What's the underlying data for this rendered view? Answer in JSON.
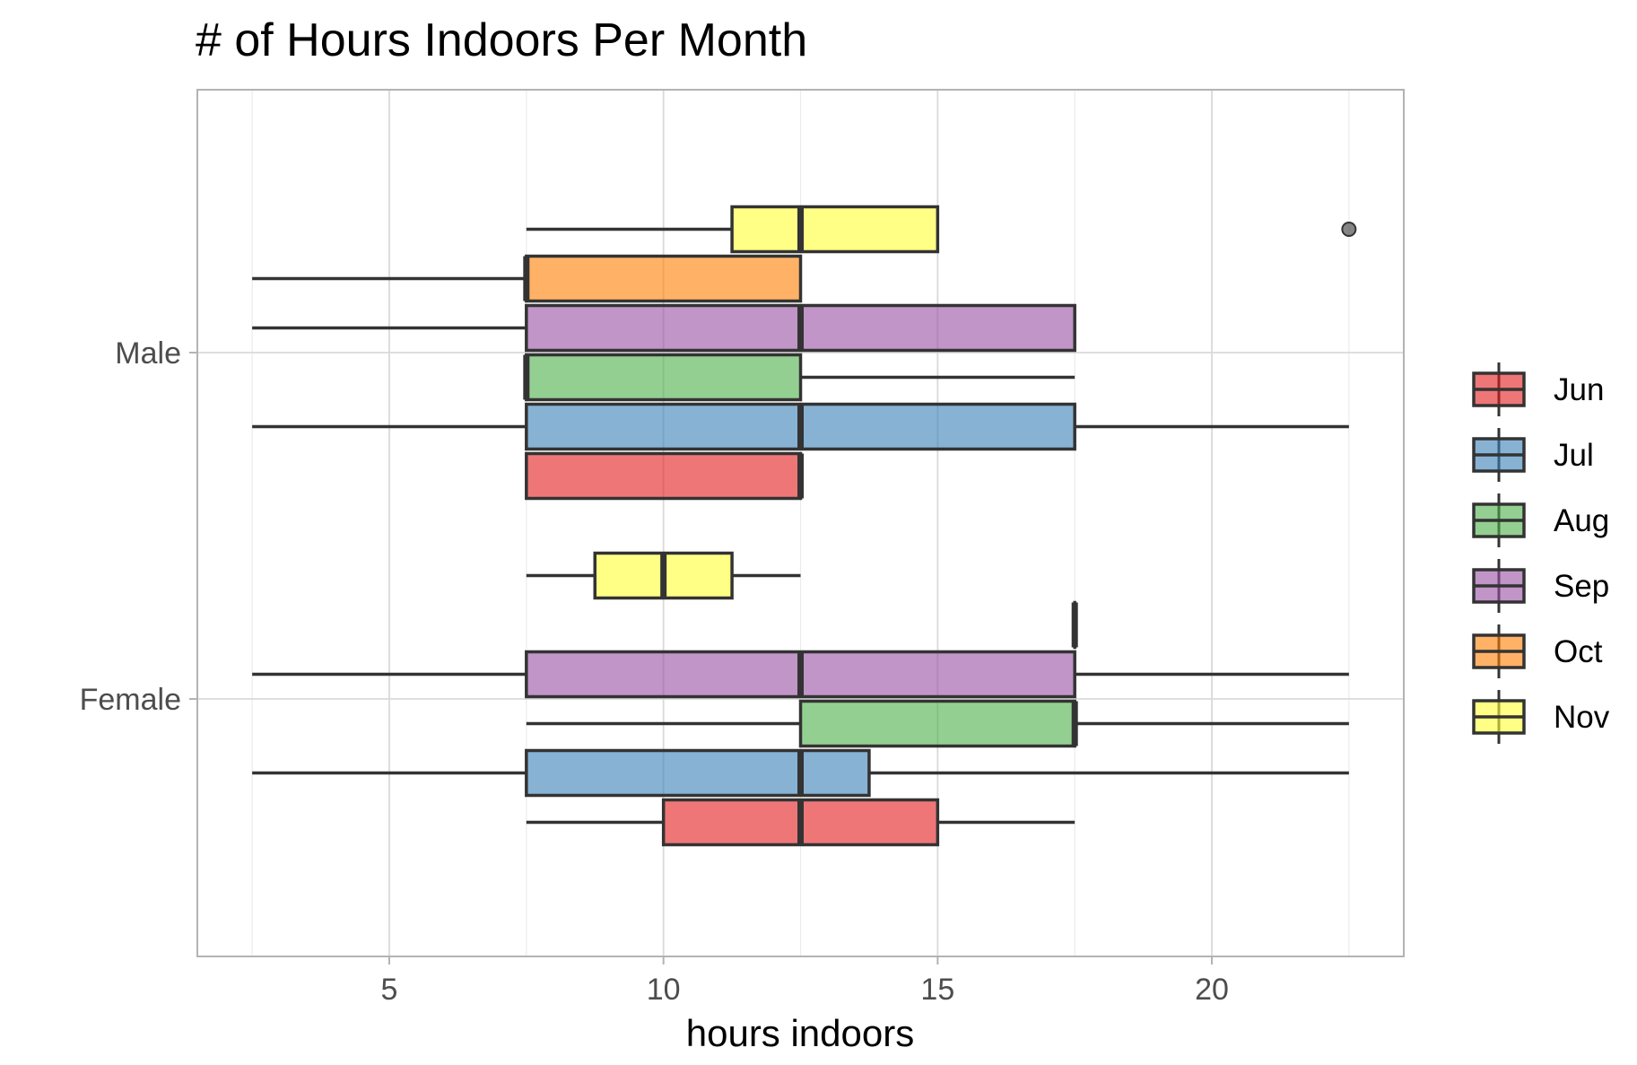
{
  "chart_data": {
    "type": "boxplot",
    "orientation": "horizontal",
    "title": "# of Hours Indoors Per Month",
    "xlabel": "hours indoors",
    "ylabel": "",
    "xlim": [
      1.5,
      23.5
    ],
    "xticks": [
      5,
      10,
      15,
      20
    ],
    "categories": [
      "Male",
      "Female"
    ],
    "grid": true,
    "legend": {
      "position": "right",
      "title": ""
    },
    "series": [
      {
        "name": "Jun",
        "color": "#E41A1C"
      },
      {
        "name": "Jul",
        "color": "#377EB8"
      },
      {
        "name": "Aug",
        "color": "#4DAF4A"
      },
      {
        "name": "Sep",
        "color": "#984EA3"
      },
      {
        "name": "Oct",
        "color": "#FF7F00"
      },
      {
        "name": "Nov",
        "color": "#FFFF33"
      }
    ],
    "boxes": [
      {
        "category": "Male",
        "series": "Jun",
        "whisker_low": 7.5,
        "q1": 7.5,
        "median": 12.5,
        "q3": 12.5,
        "whisker_high": 12.5,
        "outliers": []
      },
      {
        "category": "Male",
        "series": "Jul",
        "whisker_low": 2.5,
        "q1": 7.5,
        "median": 12.5,
        "q3": 17.5,
        "whisker_high": 22.5,
        "outliers": []
      },
      {
        "category": "Male",
        "series": "Aug",
        "whisker_low": 7.5,
        "q1": 7.5,
        "median": 7.5,
        "q3": 12.5,
        "whisker_high": 17.5,
        "outliers": []
      },
      {
        "category": "Male",
        "series": "Sep",
        "whisker_low": 2.5,
        "q1": 7.5,
        "median": 12.5,
        "q3": 17.5,
        "whisker_high": 17.5,
        "outliers": []
      },
      {
        "category": "Male",
        "series": "Oct",
        "whisker_low": 2.5,
        "q1": 7.5,
        "median": 7.5,
        "q3": 12.5,
        "whisker_high": 12.5,
        "outliers": []
      },
      {
        "category": "Male",
        "series": "Nov",
        "whisker_low": 7.5,
        "q1": 11.25,
        "median": 12.5,
        "q3": 15,
        "whisker_high": 15,
        "outliers": [
          22.5
        ]
      },
      {
        "category": "Female",
        "series": "Jun",
        "whisker_low": 7.5,
        "q1": 10,
        "median": 12.5,
        "q3": 15,
        "whisker_high": 17.5,
        "outliers": []
      },
      {
        "category": "Female",
        "series": "Jul",
        "whisker_low": 2.5,
        "q1": 7.5,
        "median": 12.5,
        "q3": 13.75,
        "whisker_high": 22.5,
        "outliers": []
      },
      {
        "category": "Female",
        "series": "Aug",
        "whisker_low": 7.5,
        "q1": 12.5,
        "median": 17.5,
        "q3": 17.5,
        "whisker_high": 22.5,
        "outliers": []
      },
      {
        "category": "Female",
        "series": "Sep",
        "whisker_low": 2.5,
        "q1": 7.5,
        "median": 12.5,
        "q3": 17.5,
        "whisker_high": 22.5,
        "outliers": []
      },
      {
        "category": "Female",
        "series": "Oct",
        "whisker_low": 17.5,
        "q1": 17.5,
        "median": 17.5,
        "q3": 17.5,
        "whisker_high": 17.5,
        "outliers": []
      },
      {
        "category": "Female",
        "series": "Nov",
        "whisker_low": 7.5,
        "q1": 8.75,
        "median": 10,
        "q3": 11.25,
        "whisker_high": 12.5,
        "outliers": []
      }
    ]
  }
}
